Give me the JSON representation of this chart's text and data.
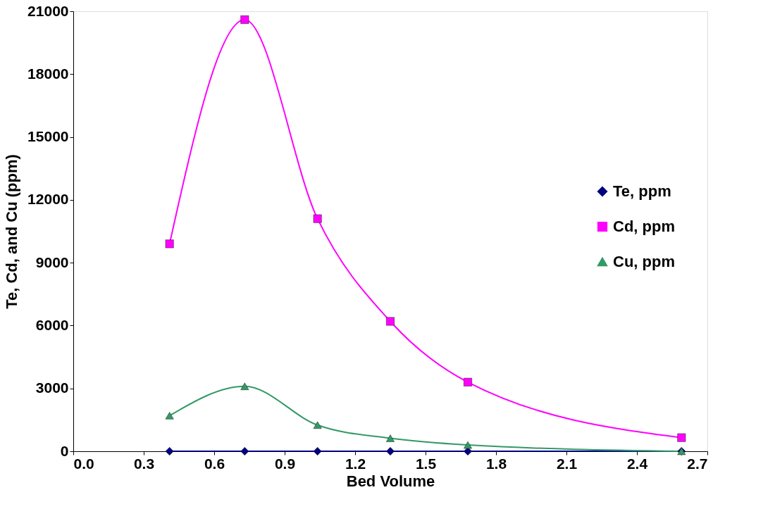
{
  "chart_data": {
    "type": "line",
    "xlabel": "Bed Volume",
    "ylabel": "Te, Cd, and Cu (ppm)",
    "x": [
      0.41,
      0.73,
      1.04,
      1.35,
      1.68,
      2.59
    ],
    "series": [
      {
        "name": "Te, ppm",
        "color": "#000080",
        "marker": "diamond",
        "values": [
          0,
          0,
          0,
          0,
          0,
          0
        ]
      },
      {
        "name": "Cd, ppm",
        "color": "#ff00ff",
        "marker": "square",
        "values": [
          9900,
          20600,
          11100,
          6200,
          3300,
          650
        ]
      },
      {
        "name": "Cu, ppm",
        "color": "#339966",
        "marker": "triangle",
        "values": [
          1700,
          3100,
          1250,
          620,
          300,
          0
        ]
      }
    ],
    "xlim": [
      0,
      2.7
    ],
    "xticks": [
      {
        "value": 0,
        "label": "0.0"
      },
      {
        "value": 0.3,
        "label": "0.3"
      },
      {
        "value": 0.6,
        "label": "0.6"
      },
      {
        "value": 0.9,
        "label": "0.9"
      },
      {
        "value": 1.2,
        "label": "1.2"
      },
      {
        "value": 1.5,
        "label": "1.5"
      },
      {
        "value": 1.8,
        "label": "1.8"
      },
      {
        "value": 2.1,
        "label": "2.1"
      },
      {
        "value": 2.4,
        "label": "2.4"
      },
      {
        "value": 2.7,
        "label": "2.7"
      }
    ],
    "ylim": [
      0,
      21000
    ],
    "yticks": [
      0,
      3000,
      6000,
      9000,
      12000,
      15000,
      18000,
      21000
    ],
    "grid": false,
    "legend": "right",
    "line_style": "solid"
  }
}
